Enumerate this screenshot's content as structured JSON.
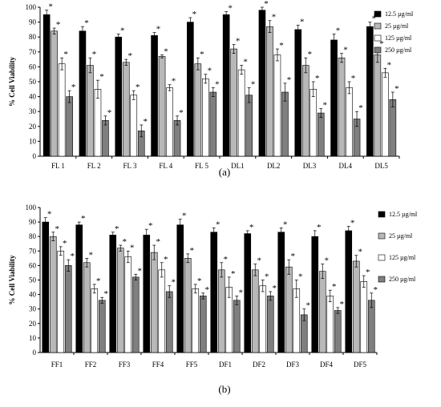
{
  "figure": {
    "panels": [
      {
        "label": "(a)",
        "ylabel": "% Cell Viability",
        "yticks": [
          "0",
          "10",
          "20",
          "30",
          "40",
          "50",
          "60",
          "70",
          "80",
          "90",
          "100"
        ],
        "legend_position": "right",
        "significance_marker": "*"
      },
      {
        "label": "(b)",
        "ylabel": "% Cell Viability",
        "yticks": [
          "0",
          "10",
          "20",
          "30",
          "40",
          "50",
          "60",
          "70",
          "80",
          "90",
          "100"
        ],
        "legend_position": "right",
        "significance_marker": "*"
      }
    ]
  },
  "chart_data": [
    {
      "type": "bar",
      "title": "",
      "xlabel": "",
      "ylabel": "% Cell Viability",
      "ylim": [
        0,
        100
      ],
      "grid": false,
      "legend": "right",
      "categories": [
        "FL 1",
        "FL 2",
        "FL 3",
        "FL 4",
        "FL 5",
        "DL1",
        "DL2",
        "DL3",
        "DL4",
        "DL5"
      ],
      "series": [
        {
          "name": "12.5 µg/ml",
          "color": "#000000",
          "values": [
            95,
            84,
            80,
            81,
            90,
            95,
            98,
            85,
            78,
            87
          ],
          "errors": [
            3,
            3,
            2,
            2,
            3,
            2,
            2,
            3,
            4,
            3
          ]
        },
        {
          "name": "25 µg/ml",
          "color": "#b8b8b8",
          "values": [
            84,
            61,
            63,
            67,
            62,
            72,
            87,
            61,
            66,
            68
          ],
          "errors": [
            2,
            5,
            2,
            1,
            4,
            3,
            4,
            5,
            3,
            5
          ]
        },
        {
          "name": "125 µg/ml",
          "color": "#ffffff",
          "values": [
            62,
            45,
            41,
            46,
            52,
            58,
            68,
            45,
            46,
            56
          ],
          "errors": [
            4,
            6,
            3,
            2,
            3,
            3,
            4,
            5,
            4,
            3
          ]
        },
        {
          "name": "250 µg/ml",
          "color": "#7f7f7f",
          "values": [
            40,
            24,
            17,
            24,
            43,
            41,
            43,
            29,
            25,
            38
          ],
          "errors": [
            4,
            3,
            4,
            3,
            3,
            5,
            6,
            3,
            5,
            5
          ]
        }
      ]
    },
    {
      "type": "bar",
      "title": "",
      "xlabel": "",
      "ylabel": "% Cell Viability",
      "ylim": [
        0,
        100
      ],
      "grid": false,
      "legend": "right",
      "categories": [
        "FF1",
        "FF2",
        "FF3",
        "FF4",
        "FF5",
        "DF1",
        "DF2",
        "DF3",
        "DF4",
        "DF5"
      ],
      "series": [
        {
          "name": "12.5 µg/ml",
          "color": "#000000",
          "values": [
            90,
            88,
            81,
            81,
            88,
            83,
            82,
            83,
            80,
            84
          ],
          "errors": [
            3,
            2,
            2,
            4,
            4,
            3,
            2,
            3,
            4,
            3
          ]
        },
        {
          "name": "25 µg/ml",
          "color": "#b8b8b8",
          "values": [
            80,
            62,
            72,
            69,
            65,
            57,
            57,
            59,
            56,
            63
          ],
          "errors": [
            3,
            3,
            2,
            5,
            3,
            5,
            4,
            5,
            5,
            4
          ]
        },
        {
          "name": "125 µg/ml",
          "color": "#ffffff",
          "values": [
            70,
            44,
            66,
            57,
            44,
            45,
            46,
            44,
            39,
            49
          ],
          "errors": [
            3,
            3,
            4,
            5,
            3,
            7,
            4,
            6,
            4,
            4
          ]
        },
        {
          "name": "250 µg/ml",
          "color": "#7f7f7f",
          "values": [
            60,
            36,
            52,
            42,
            39,
            36,
            39,
            26,
            29,
            36
          ],
          "errors": [
            4,
            2,
            2,
            4,
            2,
            3,
            3,
            4,
            2,
            5
          ]
        }
      ]
    }
  ]
}
